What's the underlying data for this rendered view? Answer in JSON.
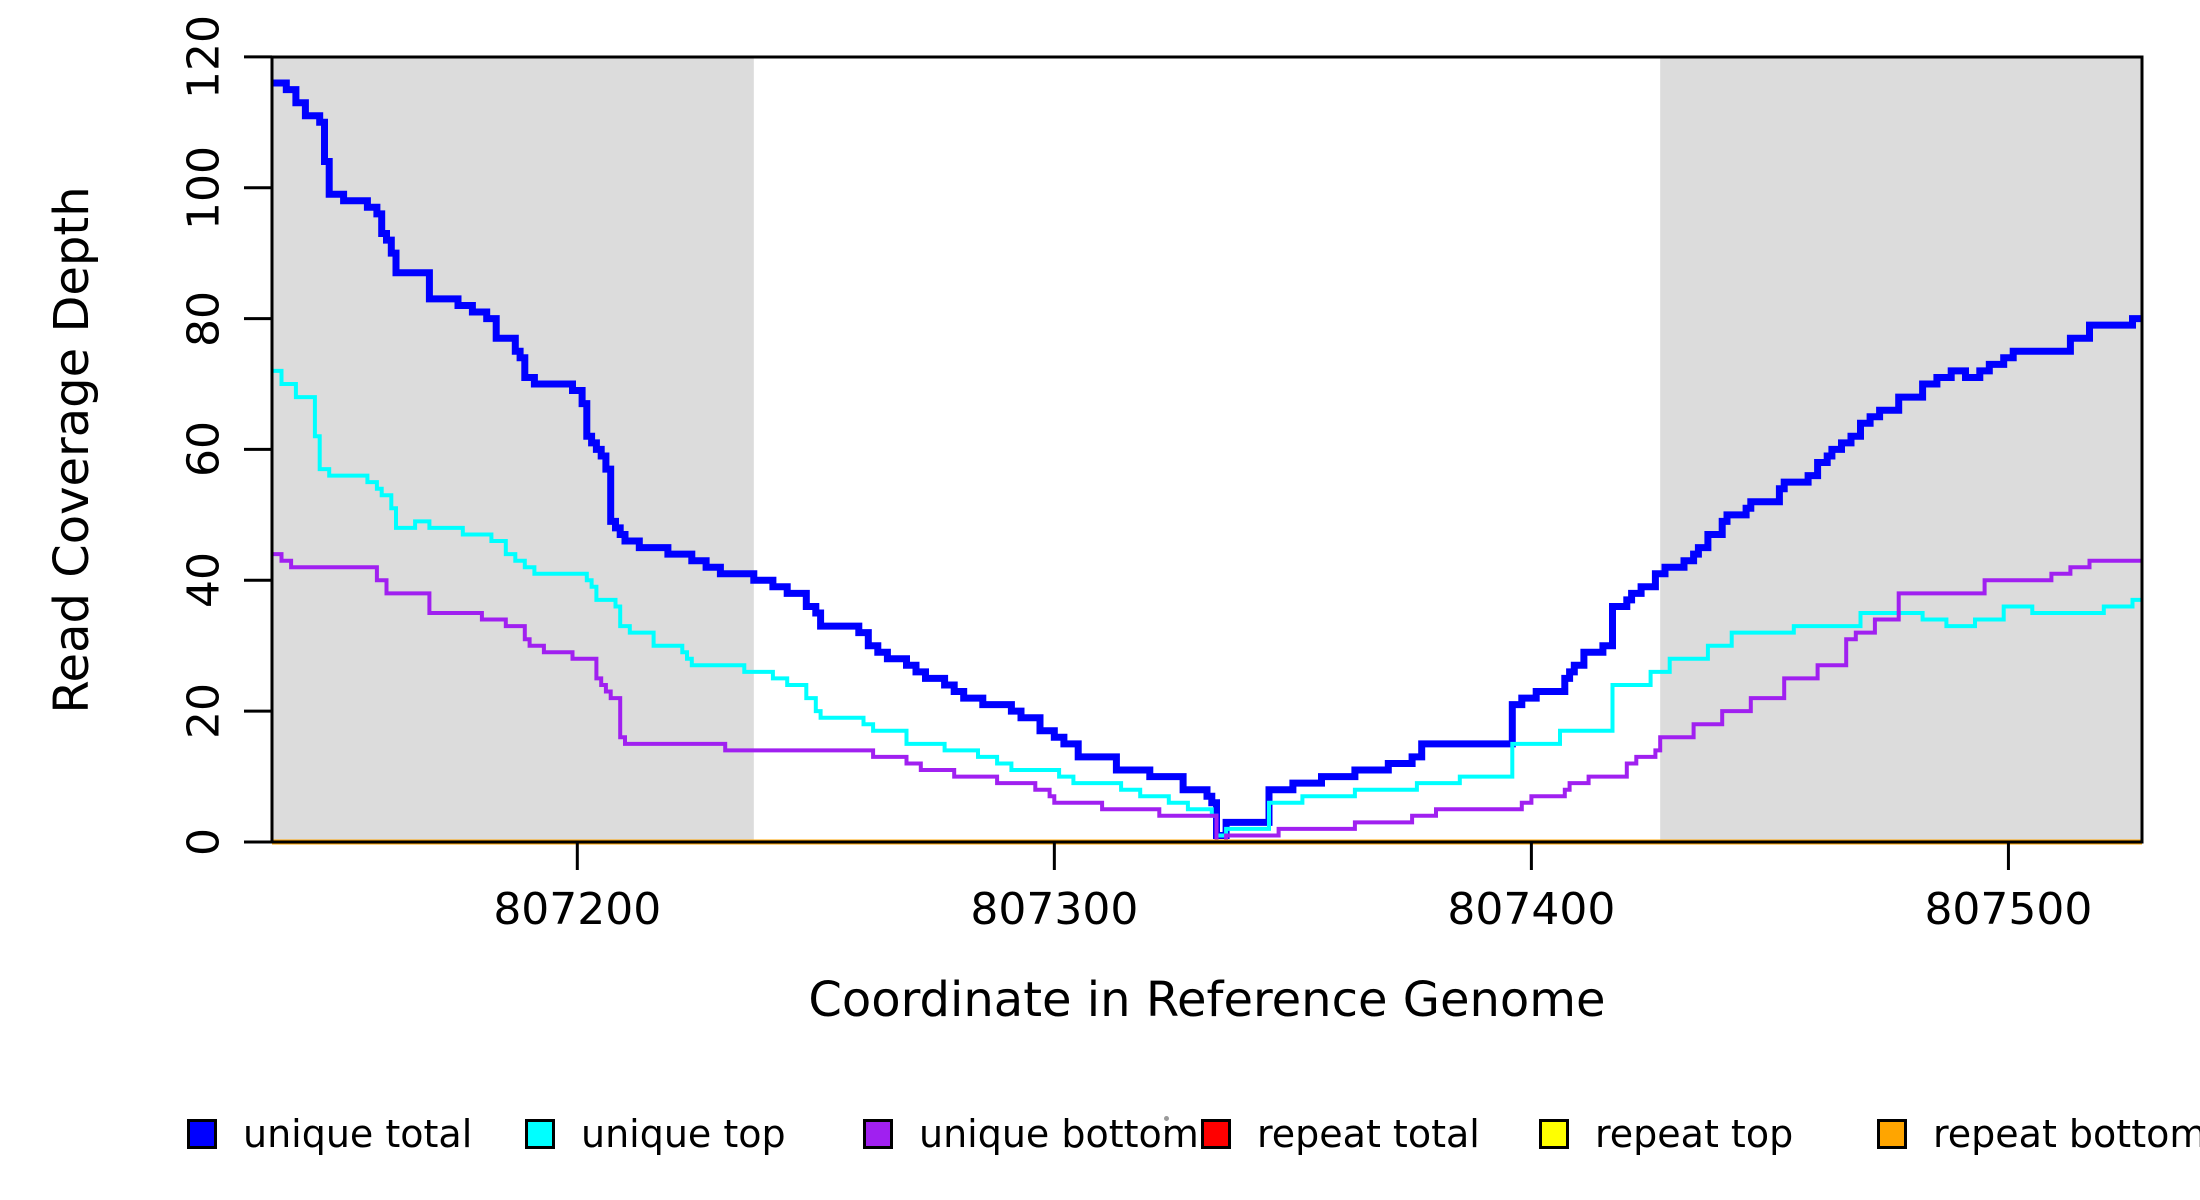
{
  "chart_data": {
    "type": "line",
    "subtype": "step-coverage-plot",
    "title": "",
    "xlabel": "Coordinate in Reference Genome",
    "ylabel": "Read Coverage Depth",
    "xlim": [
      807136,
      807528
    ],
    "ylim": [
      0,
      120
    ],
    "grid": false,
    "x_ticks": [
      807200,
      807300,
      807400,
      807500
    ],
    "x_tick_labels": [
      "807200",
      "807300",
      "807400",
      "807500"
    ],
    "y_ticks": [
      0,
      20,
      40,
      60,
      80,
      100,
      120
    ],
    "y_tick_labels": [
      "0",
      "20",
      "40",
      "60",
      "80",
      "100",
      "120"
    ],
    "shade_color": "#dcdcdc",
    "shaded_regions": [
      {
        "x0": 807136,
        "x1": 807237
      },
      {
        "x0": 807427,
        "x1": 807528
      }
    ],
    "series": [
      {
        "name": "unique total",
        "color": "#0000ff",
        "width": 7,
        "points": [
          [
            807136,
            116
          ],
          [
            807139,
            115
          ],
          [
            807141,
            113
          ],
          [
            807143,
            111
          ],
          [
            807146,
            110
          ],
          [
            807147,
            104
          ],
          [
            807148,
            99
          ],
          [
            807151,
            98
          ],
          [
            807156,
            97
          ],
          [
            807158,
            96
          ],
          [
            807159,
            93
          ],
          [
            807160,
            92
          ],
          [
            807161,
            90
          ],
          [
            807162,
            87
          ],
          [
            807169,
            83
          ],
          [
            807175,
            82
          ],
          [
            807178,
            81
          ],
          [
            807181,
            80
          ],
          [
            807183,
            77
          ],
          [
            807187,
            75
          ],
          [
            807188,
            74
          ],
          [
            807189,
            71
          ],
          [
            807191,
            70
          ],
          [
            807199,
            69
          ],
          [
            807201,
            67
          ],
          [
            807202,
            62
          ],
          [
            807203,
            61
          ],
          [
            807204,
            60
          ],
          [
            807205,
            59
          ],
          [
            807206,
            57
          ],
          [
            807207,
            49
          ],
          [
            807208,
            48
          ],
          [
            807209,
            47
          ],
          [
            807210,
            46
          ],
          [
            807213,
            45
          ],
          [
            807219,
            44
          ],
          [
            807224,
            43
          ],
          [
            807227,
            42
          ],
          [
            807230,
            41
          ],
          [
            807237,
            40
          ],
          [
            807241,
            39
          ],
          [
            807244,
            38
          ],
          [
            807248,
            36
          ],
          [
            807250,
            35
          ],
          [
            807251,
            33
          ],
          [
            807259,
            32
          ],
          [
            807261,
            30
          ],
          [
            807263,
            29
          ],
          [
            807265,
            28
          ],
          [
            807269,
            27
          ],
          [
            807271,
            26
          ],
          [
            807273,
            25
          ],
          [
            807277,
            24
          ],
          [
            807279,
            23
          ],
          [
            807281,
            22
          ],
          [
            807285,
            21
          ],
          [
            807291,
            20
          ],
          [
            807293,
            19
          ],
          [
            807297,
            17
          ],
          [
            807300,
            16
          ],
          [
            807302,
            15
          ],
          [
            807305,
            13
          ],
          [
            807313,
            11
          ],
          [
            807320,
            10
          ],
          [
            807327,
            8
          ],
          [
            807332,
            7
          ],
          [
            807333,
            6
          ],
          [
            807334,
            1
          ],
          [
            807336,
            3
          ],
          [
            807345,
            8
          ],
          [
            807350,
            9
          ],
          [
            807356,
            10
          ],
          [
            807363,
            11
          ],
          [
            807370,
            12
          ],
          [
            807375,
            13
          ],
          [
            807377,
            15
          ],
          [
            807396,
            21
          ],
          [
            807398,
            22
          ],
          [
            807401,
            23
          ],
          [
            807407,
            25
          ],
          [
            807408,
            26
          ],
          [
            807409,
            27
          ],
          [
            807411,
            29
          ],
          [
            807415,
            30
          ],
          [
            807417,
            36
          ],
          [
            807420,
            37
          ],
          [
            807421,
            38
          ],
          [
            807423,
            39
          ],
          [
            807426,
            41
          ],
          [
            807428,
            42
          ],
          [
            807432,
            43
          ],
          [
            807434,
            44
          ],
          [
            807435,
            45
          ],
          [
            807437,
            47
          ],
          [
            807440,
            49
          ],
          [
            807441,
            50
          ],
          [
            807445,
            51
          ],
          [
            807446,
            52
          ],
          [
            807452,
            54
          ],
          [
            807453,
            55
          ],
          [
            807458,
            56
          ],
          [
            807460,
            58
          ],
          [
            807462,
            59
          ],
          [
            807463,
            60
          ],
          [
            807465,
            61
          ],
          [
            807467,
            62
          ],
          [
            807469,
            64
          ],
          [
            807471,
            65
          ],
          [
            807473,
            66
          ],
          [
            807477,
            68
          ],
          [
            807482,
            70
          ],
          [
            807485,
            71
          ],
          [
            807488,
            72
          ],
          [
            807491,
            71
          ],
          [
            807494,
            72
          ],
          [
            807496,
            73
          ],
          [
            807499,
            74
          ],
          [
            807501,
            75
          ],
          [
            807513,
            77
          ],
          [
            807517,
            79
          ],
          [
            807526,
            80
          ],
          [
            807528,
            80
          ]
        ]
      },
      {
        "name": "unique top",
        "color": "#00ffff",
        "width": 4,
        "points": [
          [
            807136,
            72
          ],
          [
            807138,
            70
          ],
          [
            807141,
            68
          ],
          [
            807145,
            62
          ],
          [
            807146,
            57
          ],
          [
            807148,
            56
          ],
          [
            807156,
            55
          ],
          [
            807158,
            54
          ],
          [
            807159,
            53
          ],
          [
            807161,
            51
          ],
          [
            807162,
            48
          ],
          [
            807166,
            49
          ],
          [
            807169,
            48
          ],
          [
            807176,
            47
          ],
          [
            807182,
            46
          ],
          [
            807185,
            44
          ],
          [
            807187,
            43
          ],
          [
            807189,
            42
          ],
          [
            807191,
            41
          ],
          [
            807202,
            40
          ],
          [
            807203,
            39
          ],
          [
            807204,
            37
          ],
          [
            807208,
            36
          ],
          [
            807209,
            33
          ],
          [
            807211,
            32
          ],
          [
            807216,
            30
          ],
          [
            807222,
            29
          ],
          [
            807223,
            28
          ],
          [
            807224,
            27
          ],
          [
            807235,
            26
          ],
          [
            807241,
            25
          ],
          [
            807244,
            24
          ],
          [
            807248,
            22
          ],
          [
            807250,
            20
          ],
          [
            807251,
            19
          ],
          [
            807260,
            18
          ],
          [
            807262,
            17
          ],
          [
            807269,
            15
          ],
          [
            807277,
            14
          ],
          [
            807284,
            13
          ],
          [
            807288,
            12
          ],
          [
            807291,
            11
          ],
          [
            807301,
            10
          ],
          [
            807304,
            9
          ],
          [
            807314,
            8
          ],
          [
            807318,
            7
          ],
          [
            807324,
            6
          ],
          [
            807328,
            5
          ],
          [
            807333,
            4
          ],
          [
            807334,
            1
          ],
          [
            807336,
            2
          ],
          [
            807345,
            6
          ],
          [
            807352,
            7
          ],
          [
            807363,
            8
          ],
          [
            807376,
            9
          ],
          [
            807385,
            10
          ],
          [
            807396,
            15
          ],
          [
            807406,
            17
          ],
          [
            807417,
            24
          ],
          [
            807425,
            26
          ],
          [
            807429,
            28
          ],
          [
            807437,
            30
          ],
          [
            807442,
            32
          ],
          [
            807455,
            33
          ],
          [
            807469,
            35
          ],
          [
            807482,
            34
          ],
          [
            807487,
            33
          ],
          [
            807493,
            34
          ],
          [
            807499,
            36
          ],
          [
            807505,
            35
          ],
          [
            807520,
            36
          ],
          [
            807526,
            37
          ],
          [
            807528,
            37
          ]
        ]
      },
      {
        "name": "unique bottom",
        "color": "#a020f0",
        "width": 4,
        "points": [
          [
            807136,
            44
          ],
          [
            807138,
            43
          ],
          [
            807140,
            42
          ],
          [
            807158,
            40
          ],
          [
            807160,
            38
          ],
          [
            807169,
            35
          ],
          [
            807180,
            34
          ],
          [
            807185,
            33
          ],
          [
            807189,
            31
          ],
          [
            807190,
            30
          ],
          [
            807193,
            29
          ],
          [
            807199,
            28
          ],
          [
            807204,
            25
          ],
          [
            807205,
            24
          ],
          [
            807206,
            23
          ],
          [
            807207,
            22
          ],
          [
            807209,
            16
          ],
          [
            807210,
            15
          ],
          [
            807231,
            14
          ],
          [
            807262,
            13
          ],
          [
            807269,
            12
          ],
          [
            807272,
            11
          ],
          [
            807279,
            10
          ],
          [
            807288,
            9
          ],
          [
            807296,
            8
          ],
          [
            807299,
            7
          ],
          [
            807300,
            6
          ],
          [
            807310,
            5
          ],
          [
            807322,
            4
          ],
          [
            807334,
            0
          ],
          [
            807336,
            1
          ],
          [
            807347,
            2
          ],
          [
            807363,
            3
          ],
          [
            807375,
            4
          ],
          [
            807380,
            5
          ],
          [
            807398,
            6
          ],
          [
            807400,
            7
          ],
          [
            807407,
            8
          ],
          [
            807408,
            9
          ],
          [
            807412,
            10
          ],
          [
            807420,
            12
          ],
          [
            807422,
            13
          ],
          [
            807426,
            14
          ],
          [
            807427,
            16
          ],
          [
            807434,
            18
          ],
          [
            807440,
            20
          ],
          [
            807446,
            22
          ],
          [
            807453,
            25
          ],
          [
            807460,
            27
          ],
          [
            807466,
            31
          ],
          [
            807468,
            32
          ],
          [
            807472,
            34
          ],
          [
            807477,
            38
          ],
          [
            807495,
            40
          ],
          [
            807509,
            41
          ],
          [
            807513,
            42
          ],
          [
            807517,
            43
          ],
          [
            807528,
            43
          ]
        ]
      },
      {
        "name": "repeat total",
        "color": "#ff0000",
        "width": 4,
        "points": [
          [
            807136,
            0
          ],
          [
            807528,
            0
          ]
        ]
      },
      {
        "name": "repeat top",
        "color": "#ffff00",
        "width": 4,
        "points": [
          [
            807136,
            0
          ],
          [
            807528,
            0
          ]
        ]
      },
      {
        "name": "repeat bottom",
        "color": "#ffa500",
        "width": 5,
        "points": [
          [
            807136,
            0
          ],
          [
            807528,
            0
          ]
        ]
      }
    ],
    "legend_position": "bottom"
  },
  "legend": {
    "items": [
      {
        "label": "unique total",
        "color": "#0000ff"
      },
      {
        "label": "unique top",
        "color": "#00ffff"
      },
      {
        "label": "unique bottom",
        "color": "#a020f0"
      },
      {
        "label": "repeat total",
        "color": "#ff0000"
      },
      {
        "label": "repeat top",
        "color": "#ffff00"
      },
      {
        "label": "repeat bottom",
        "color": "#ffa500"
      }
    ]
  },
  "axes": {
    "x_title": "Coordinate in Reference Genome",
    "y_title": "Read Coverage Depth"
  }
}
